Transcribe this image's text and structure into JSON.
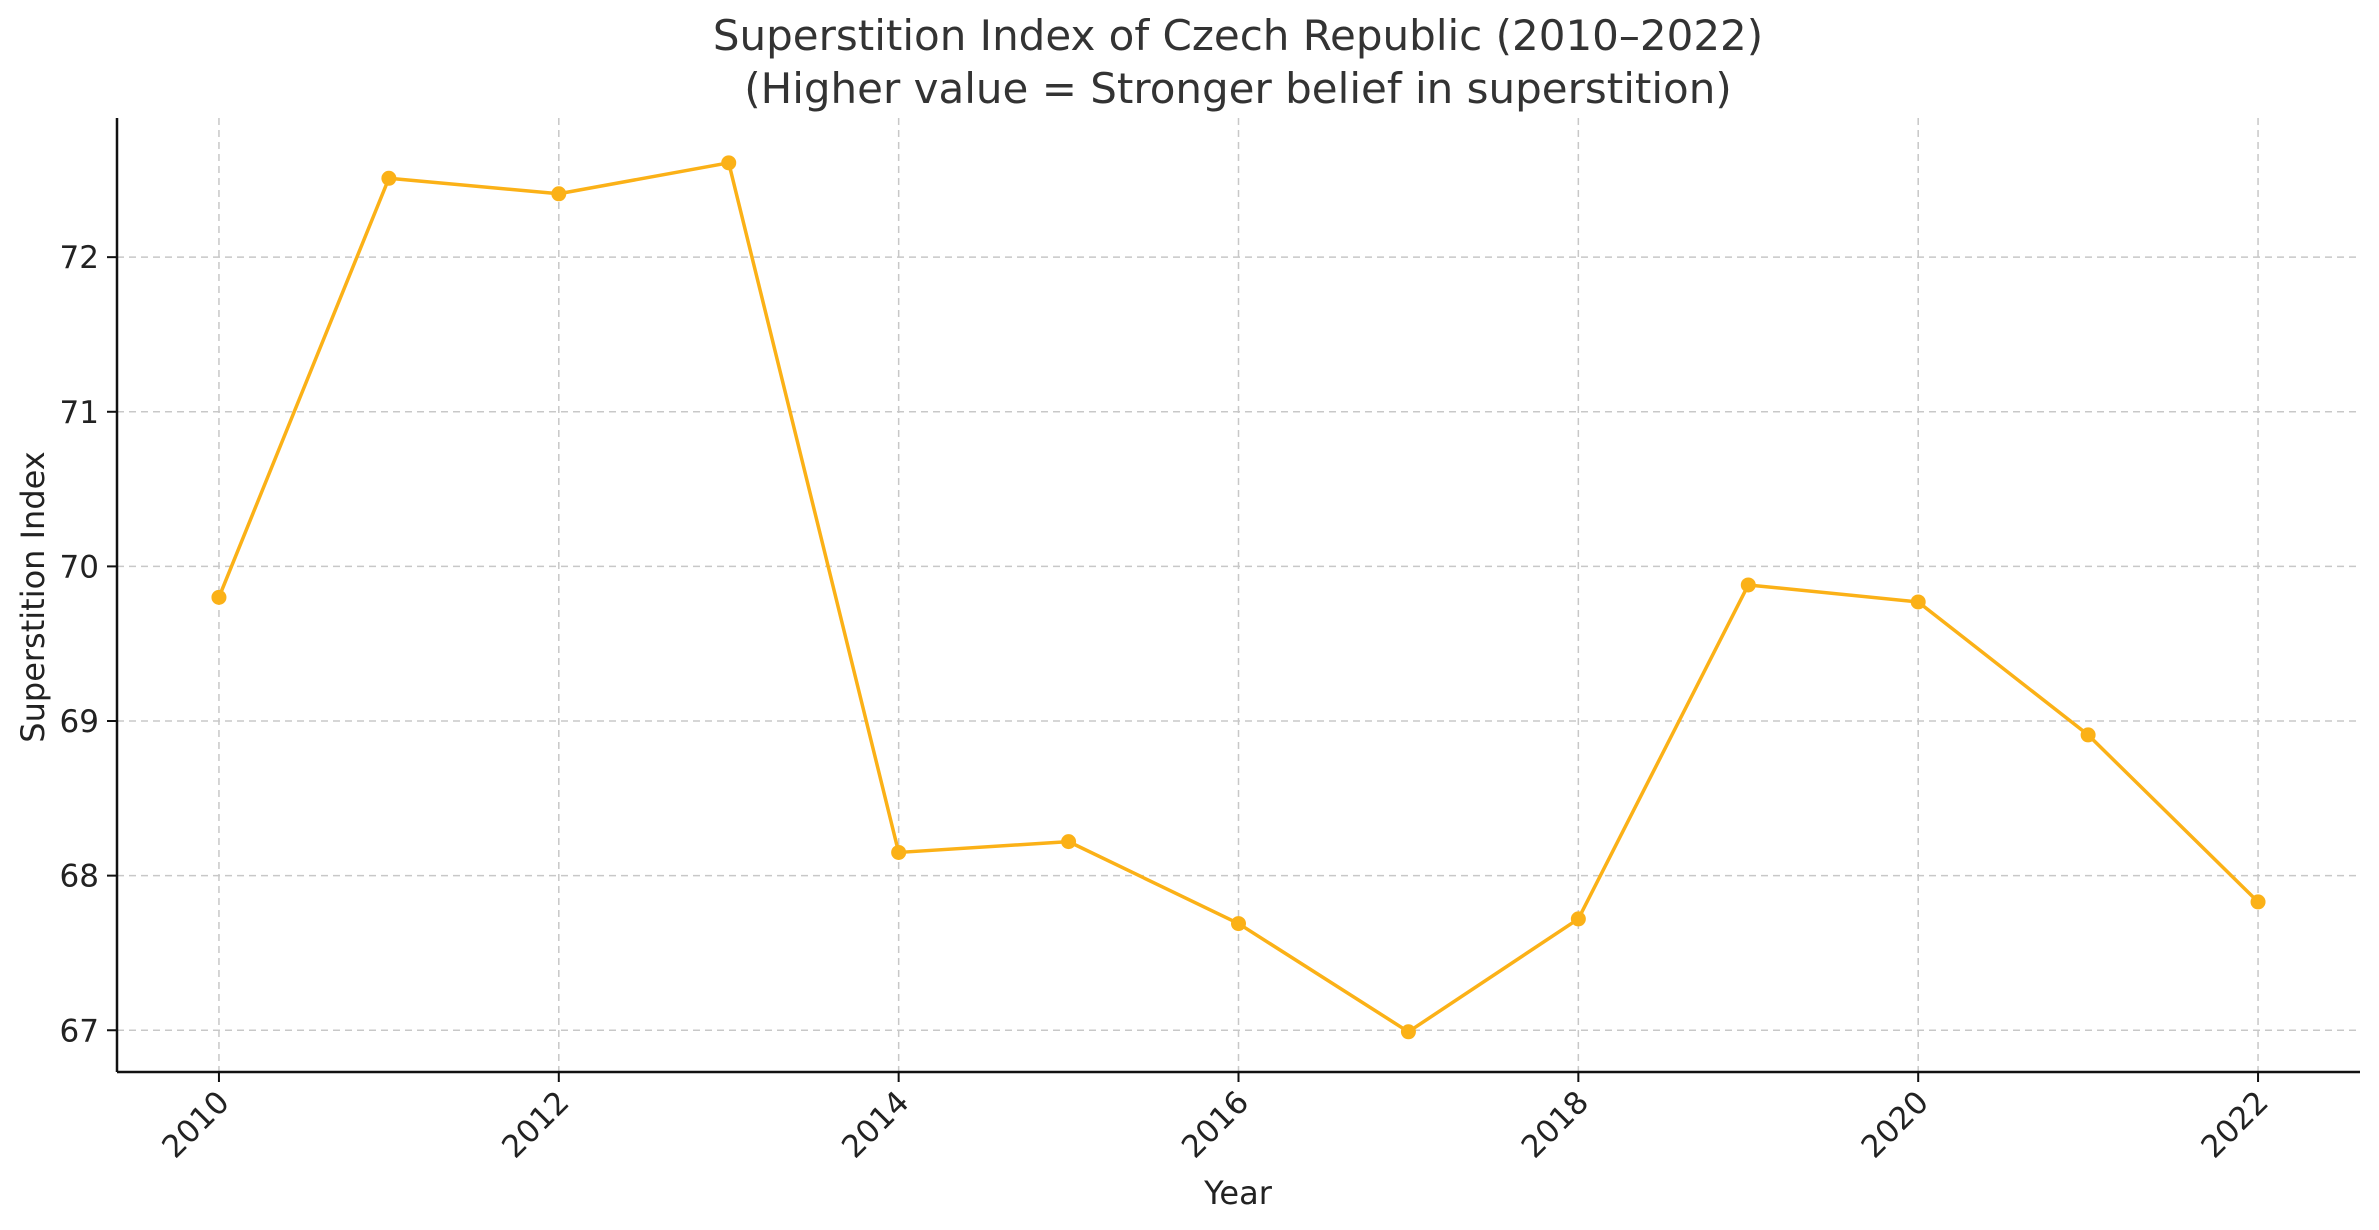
{
  "chart_data": {
    "type": "line",
    "title_lines": [
      "Superstition Index of Czech Republic (2010–2022)",
      "(Higher value = Stronger belief in superstition)"
    ],
    "xlabel": "Year",
    "ylabel": "Superstition Index",
    "x": [
      2010,
      2011,
      2012,
      2013,
      2014,
      2015,
      2016,
      2017,
      2018,
      2019,
      2020,
      2021,
      2022
    ],
    "series": [
      {
        "values": [
          69.8,
          72.51,
          72.41,
          72.61,
          68.15,
          68.22,
          67.69,
          66.99,
          67.72,
          69.88,
          69.77,
          68.91,
          67.83
        ],
        "color": "#FBB117"
      }
    ],
    "xticks": [
      "2010",
      "2012",
      "2014",
      "2016",
      "2018",
      "2020",
      "2022"
    ],
    "yticks": [
      "67",
      "68",
      "69",
      "70",
      "71",
      "72"
    ],
    "xlim": [
      2009.4,
      2022.6
    ],
    "ylim": [
      66.73,
      72.9
    ],
    "grid": true,
    "legend": "none",
    "marker": "circle"
  }
}
